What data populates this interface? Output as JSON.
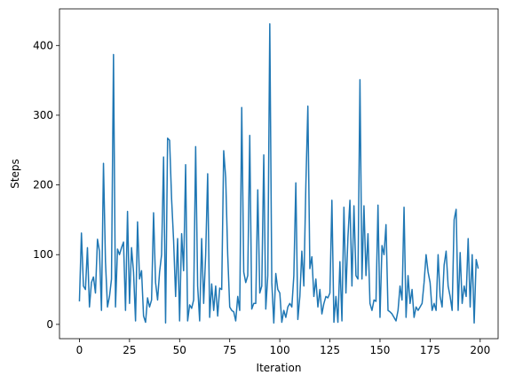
{
  "chart_data": {
    "type": "line",
    "xlabel": "Iteration",
    "ylabel": "Steps",
    "color": "#1f77b4",
    "x": [
      0,
      1,
      2,
      3,
      4,
      5,
      6,
      7,
      8,
      9,
      10,
      11,
      12,
      13,
      14,
      15,
      16,
      17,
      18,
      19,
      20,
      21,
      22,
      23,
      24,
      25,
      26,
      27,
      28,
      29,
      30,
      31,
      32,
      33,
      34,
      35,
      36,
      37,
      38,
      39,
      40,
      41,
      42,
      43,
      44,
      45,
      46,
      47,
      48,
      49,
      50,
      51,
      52,
      53,
      54,
      55,
      56,
      57,
      58,
      59,
      60,
      61,
      62,
      63,
      64,
      65,
      66,
      67,
      68,
      69,
      70,
      71,
      72,
      73,
      74,
      75,
      76,
      77,
      78,
      79,
      80,
      81,
      82,
      83,
      84,
      85,
      86,
      87,
      88,
      89,
      90,
      91,
      92,
      93,
      94,
      95,
      96,
      97,
      98,
      99,
      100,
      101,
      102,
      103,
      104,
      105,
      106,
      107,
      108,
      109,
      110,
      111,
      112,
      113,
      114,
      115,
      116,
      117,
      118,
      119,
      120,
      121,
      122,
      123,
      124,
      125,
      126,
      127,
      128,
      129,
      130,
      131,
      132,
      133,
      134,
      135,
      136,
      137,
      138,
      139,
      140,
      141,
      142,
      143,
      144,
      145,
      146,
      147,
      148,
      149,
      150,
      151,
      152,
      153,
      154,
      155,
      156,
      157,
      158,
      159,
      160,
      161,
      162,
      163,
      164,
      165,
      166,
      167,
      168,
      169,
      170,
      171,
      172,
      173,
      174,
      175,
      176,
      177,
      178,
      179,
      180,
      181,
      182,
      183,
      184,
      185,
      186,
      187,
      188,
      189,
      190,
      191,
      192,
      193,
      194,
      195,
      196,
      197,
      198,
      199
    ],
    "values": [
      33,
      131,
      55,
      50,
      110,
      25,
      60,
      68,
      45,
      122,
      105,
      20,
      231,
      90,
      25,
      40,
      65,
      387,
      25,
      108,
      100,
      110,
      118,
      20,
      162,
      30,
      110,
      75,
      5,
      147,
      65,
      77,
      12,
      3,
      38,
      25,
      35,
      160,
      60,
      35,
      75,
      100,
      240,
      2,
      267,
      264,
      180,
      120,
      40,
      123,
      5,
      130,
      77,
      229,
      5,
      28,
      23,
      35,
      255,
      55,
      5,
      123,
      30,
      100,
      216,
      10,
      58,
      20,
      55,
      12,
      52,
      50,
      249,
      210,
      100,
      25,
      20,
      18,
      5,
      40,
      20,
      311,
      75,
      60,
      70,
      271,
      22,
      30,
      30,
      193,
      45,
      55,
      243,
      22,
      70,
      431,
      60,
      2,
      73,
      50,
      45,
      3,
      20,
      10,
      25,
      30,
      25,
      70,
      203,
      7,
      40,
      105,
      55,
      200,
      313,
      80,
      97,
      40,
      65,
      25,
      50,
      15,
      30,
      40,
      38,
      45,
      178,
      3,
      40,
      3,
      90,
      5,
      168,
      45,
      125,
      178,
      55,
      170,
      70,
      65,
      351,
      65,
      170,
      70,
      130,
      30,
      20,
      35,
      33,
      171,
      10,
      113,
      100,
      143,
      20,
      18,
      15,
      10,
      5,
      20,
      55,
      35,
      168,
      10,
      70,
      30,
      50,
      10,
      25,
      20,
      25,
      30,
      60,
      100,
      75,
      60,
      20,
      30,
      20,
      100,
      40,
      25,
      85,
      105,
      55,
      40,
      20,
      150,
      165,
      20,
      103,
      30,
      55,
      40,
      123,
      25,
      100,
      2,
      93,
      80
    ],
    "xlim": [
      -9.95,
      208.95
    ],
    "xticks": [
      0,
      25,
      50,
      75,
      100,
      125,
      150,
      175,
      200
    ],
    "ylim": [
      -20.5,
      452.5
    ],
    "yticks": [
      0,
      100,
      200,
      300,
      400
    ]
  }
}
